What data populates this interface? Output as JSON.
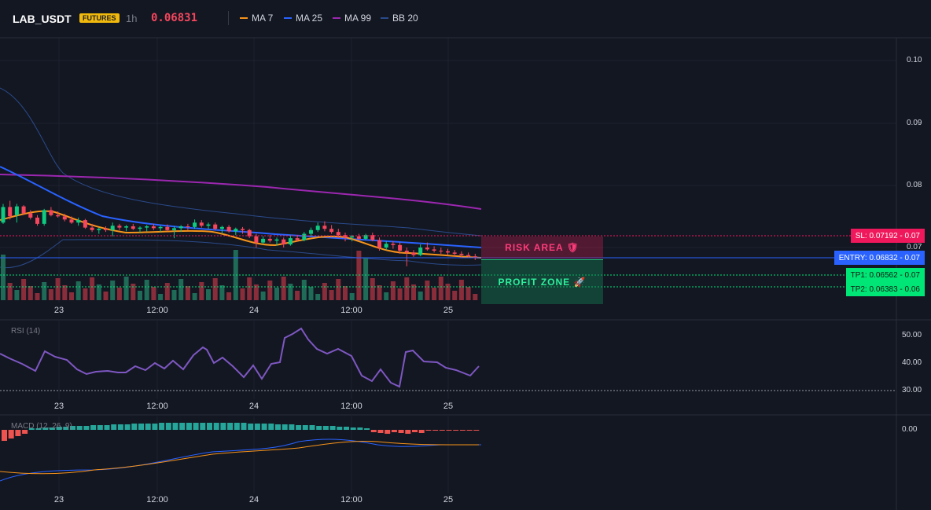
{
  "header": {
    "symbol": "LAB_USDT",
    "badge": "FUTURES",
    "timeframe": "1h",
    "price": "0.06831",
    "legend": [
      {
        "label": "MA 7",
        "color": "#f7931a"
      },
      {
        "label": "MA 25",
        "color": "#2962ff"
      },
      {
        "label": "MA 99",
        "color": "#9c27b0"
      },
      {
        "label": "BB 20",
        "color": "#2a4a8a"
      }
    ]
  },
  "price_axis": [
    "0.10",
    "0.09",
    "0.08",
    "0.07"
  ],
  "rsi_axis": [
    "50.00",
    "40.00",
    "30.00"
  ],
  "macd_axis": [
    "0.00"
  ],
  "time_labels": [
    "23",
    "12:00",
    "24",
    "12:00",
    "25"
  ],
  "indicators": {
    "rsi_title": "RSI (14)",
    "macd_title": "MACD (12, 26, 9)"
  },
  "levels": {
    "sl": {
      "label": "SL: 0.07192",
      "axis": "0.07",
      "color": "#f0185c"
    },
    "entry": {
      "label": "ENTRY: 0.06832",
      "axis": "0.07",
      "color": "#2962ff"
    },
    "tp1": {
      "label": "TP1: 0.06562",
      "axis": "0.07",
      "color": "#00e676"
    },
    "tp2": {
      "label": "TP2: 0.06383",
      "axis": "0.06",
      "color": "#00e676"
    }
  },
  "zones": {
    "risk": "RISK AREA 🛡",
    "profit": "PROFIT ZONE 🚀"
  },
  "chart_data": {
    "type": "candlestick",
    "symbol": "LAB_USDT",
    "interval": "1h",
    "last_price": 0.06831,
    "candles": [
      [
        0.074,
        0.077,
        0.0738,
        0.0765
      ],
      [
        0.0765,
        0.0775,
        0.0745,
        0.075
      ],
      [
        0.0752,
        0.077,
        0.074,
        0.0766
      ],
      [
        0.0766,
        0.0768,
        0.0752,
        0.0755
      ],
      [
        0.0755,
        0.076,
        0.0745,
        0.0748
      ],
      [
        0.0748,
        0.0752,
        0.0735,
        0.0738
      ],
      [
        0.0738,
        0.0762,
        0.0735,
        0.076
      ],
      [
        0.076,
        0.0765,
        0.075,
        0.0752
      ],
      [
        0.0752,
        0.0758,
        0.0748,
        0.075
      ],
      [
        0.075,
        0.0754,
        0.0742,
        0.0745
      ],
      [
        0.0745,
        0.075,
        0.0738,
        0.074
      ],
      [
        0.074,
        0.0748,
        0.0735,
        0.0744
      ],
      [
        0.0744,
        0.0746,
        0.073,
        0.0732
      ],
      [
        0.0732,
        0.0738,
        0.0725,
        0.0728
      ],
      [
        0.0728,
        0.0732,
        0.0722,
        0.073
      ],
      [
        0.073,
        0.0734,
        0.0725,
        0.0728
      ],
      [
        0.0728,
        0.074,
        0.0718,
        0.0735
      ],
      [
        0.0735,
        0.0738,
        0.0728,
        0.0732
      ],
      [
        0.0732,
        0.0736,
        0.0726,
        0.0734
      ],
      [
        0.0734,
        0.0738,
        0.0728,
        0.073
      ],
      [
        0.073,
        0.0734,
        0.0724,
        0.0732
      ],
      [
        0.0732,
        0.0736,
        0.0726,
        0.0734
      ],
      [
        0.0734,
        0.0738,
        0.0728,
        0.0731
      ],
      [
        0.0731,
        0.0735,
        0.0725,
        0.0733
      ],
      [
        0.0733,
        0.0737,
        0.0726,
        0.0728
      ],
      [
        0.0728,
        0.0734,
        0.0715,
        0.0731
      ],
      [
        0.0731,
        0.0736,
        0.0725,
        0.0734
      ],
      [
        0.0734,
        0.0738,
        0.0728,
        0.0733
      ],
      [
        0.0733,
        0.0745,
        0.073,
        0.074
      ],
      [
        0.074,
        0.0744,
        0.0732,
        0.0735
      ],
      [
        0.0735,
        0.074,
        0.073,
        0.0737
      ],
      [
        0.0737,
        0.074,
        0.0728,
        0.073
      ],
      [
        0.073,
        0.0735,
        0.0722,
        0.0733
      ],
      [
        0.0733,
        0.0736,
        0.0724,
        0.0726
      ],
      [
        0.0726,
        0.0732,
        0.072,
        0.073
      ],
      [
        0.073,
        0.0733,
        0.0722,
        0.0728
      ],
      [
        0.0728,
        0.073,
        0.0715,
        0.0718
      ],
      [
        0.0718,
        0.0722,
        0.07,
        0.0708
      ],
      [
        0.0708,
        0.0718,
        0.0705,
        0.0714
      ],
      [
        0.0714,
        0.072,
        0.0708,
        0.0711
      ],
      [
        0.0711,
        0.0716,
        0.0703,
        0.0713
      ],
      [
        0.0713,
        0.0716,
        0.07,
        0.0705
      ],
      [
        0.0705,
        0.072,
        0.0703,
        0.0715
      ],
      [
        0.0715,
        0.072,
        0.071,
        0.0712
      ],
      [
        0.0712,
        0.0725,
        0.071,
        0.0722
      ],
      [
        0.0722,
        0.0732,
        0.0718,
        0.0728
      ],
      [
        0.0728,
        0.074,
        0.0725,
        0.0735
      ],
      [
        0.0735,
        0.0742,
        0.0726,
        0.073
      ],
      [
        0.073,
        0.0736,
        0.0722,
        0.0725
      ],
      [
        0.0725,
        0.073,
        0.0715,
        0.072
      ],
      [
        0.072,
        0.0724,
        0.071,
        0.0716
      ],
      [
        0.0716,
        0.072,
        0.071,
        0.0718
      ],
      [
        0.0718,
        0.0722,
        0.0712,
        0.0714
      ],
      [
        0.0714,
        0.0722,
        0.0712,
        0.072
      ],
      [
        0.072,
        0.0724,
        0.071,
        0.0712
      ],
      [
        0.0712,
        0.0716,
        0.0695,
        0.07
      ],
      [
        0.07,
        0.071,
        0.0696,
        0.0706
      ],
      [
        0.0706,
        0.071,
        0.0698,
        0.0704
      ],
      [
        0.0704,
        0.0708,
        0.069,
        0.0695
      ],
      [
        0.0695,
        0.07,
        0.067,
        0.0692
      ],
      [
        0.0692,
        0.0696,
        0.0685,
        0.0688
      ],
      [
        0.0688,
        0.0705,
        0.0686,
        0.07
      ],
      [
        0.07,
        0.0708,
        0.0695,
        0.0697
      ],
      [
        0.0697,
        0.0702,
        0.0692,
        0.0695
      ],
      [
        0.0695,
        0.07,
        0.069,
        0.0694
      ],
      [
        0.0694,
        0.0698,
        0.0688,
        0.0692
      ],
      [
        0.0692,
        0.0696,
        0.0686,
        0.069
      ],
      [
        0.069,
        0.0694,
        0.0684,
        0.0688
      ],
      [
        0.0688,
        0.0692,
        0.0683,
        0.0686
      ],
      [
        0.0686,
        0.069,
        0.068,
        0.0683
      ]
    ]
  }
}
